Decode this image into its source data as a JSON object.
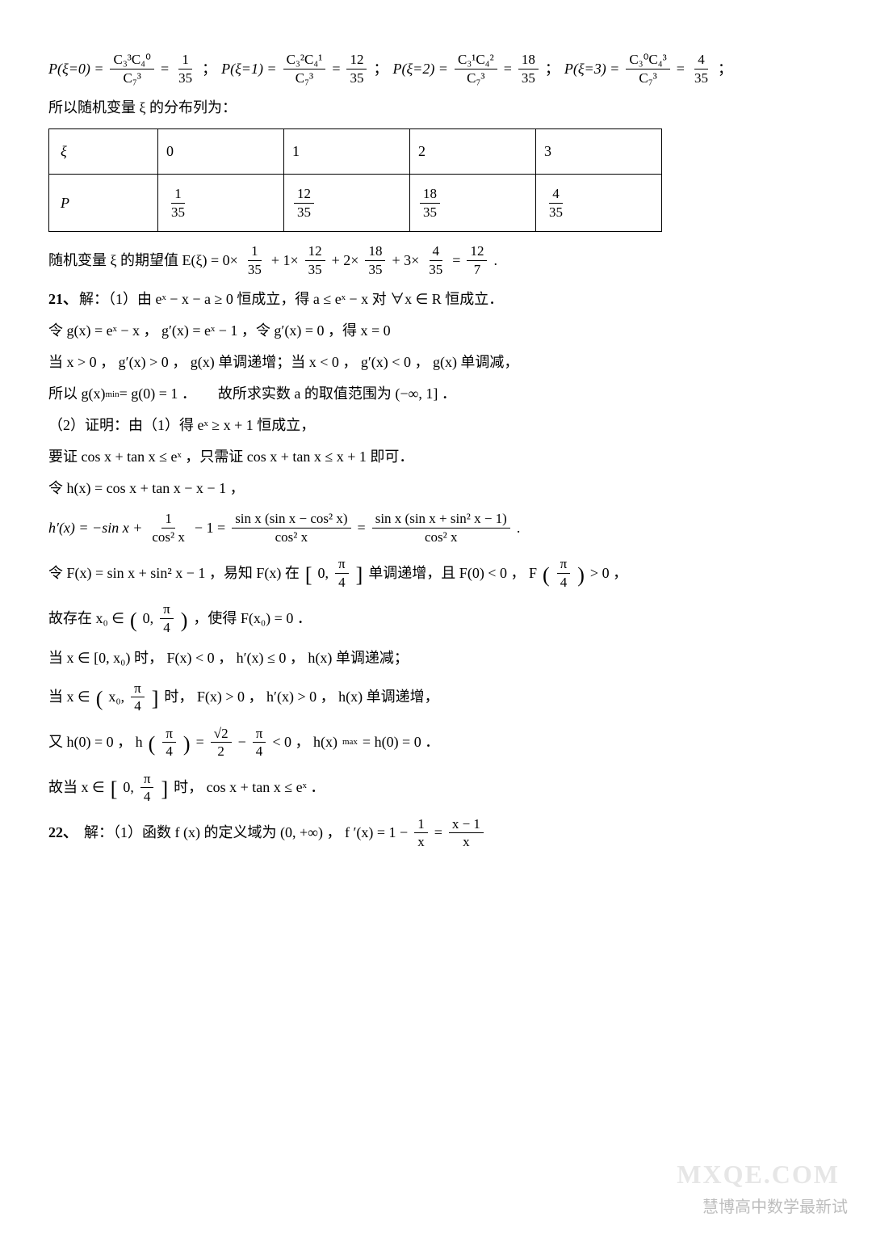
{
  "prob_row": {
    "p0": {
      "lhs": "P(ξ=0) =",
      "num": "C₃³C₄⁰",
      "den": "C₇³",
      "eq": "=",
      "rnum": "1",
      "rden": "35",
      "sep": "；"
    },
    "p1": {
      "lhs": "P(ξ=1) =",
      "num": "C₃²C₄¹",
      "den": "C₇³",
      "eq": "=",
      "rnum": "12",
      "rden": "35",
      "sep": "；"
    },
    "p2": {
      "lhs": "P(ξ=2) =",
      "num": "C₃¹C₄²",
      "den": "C₇³",
      "eq": "=",
      "rnum": "18",
      "rden": "35",
      "sep": "；"
    },
    "p3": {
      "lhs": "P(ξ=3) =",
      "num": "C₃⁰C₄³",
      "den": "C₇³",
      "eq": "=",
      "rnum": "4",
      "rden": "35",
      "sep": "；"
    }
  },
  "dist_intro": "所以随机变量 ξ 的分布列为：",
  "table": {
    "r0c0": "ξ",
    "r0c1": "0",
    "r0c2": "1",
    "r0c3": "2",
    "r0c4": "3",
    "r1c0": "P",
    "p0num": "1",
    "p0den": "35",
    "p1num": "12",
    "p1den": "35",
    "p2num": "18",
    "p2den": "35",
    "p3num": "4",
    "p3den": "35"
  },
  "exp_line": {
    "pre": "随机变量 ξ 的期望值 E(ξ) = 0×",
    "f1n": "1",
    "f1d": "35",
    "mid1": " + 1×",
    "f2n": "12",
    "f2d": "35",
    "mid2": " + 2×",
    "f3n": "18",
    "f3d": "35",
    "mid3": " + 3×",
    "f4n": "4",
    "f4d": "35",
    "mid4": " = ",
    "f5n": "12",
    "f5d": "7",
    "end": "."
  },
  "q21": {
    "label": "21、",
    "l1": "解：（1）由 eˣ − x − a ≥ 0 恒成立，得 a ≤ eˣ − x 对 ∀x ∈ R 恒成立．",
    "l2": "令 g(x) = eˣ − x ， g′(x) = eˣ − 1 ，令 g′(x) = 0 ，得 x = 0",
    "l3": "当 x > 0 ， g′(x) > 0 ， g(x) 单调递增；当 x < 0 ， g′(x) < 0 ， g(x) 单调减，",
    "l4a": "所以 g(x)",
    "l4sub": "min",
    "l4b": " = g(0) = 1 ．　　故所求实数 a 的取值范围为 (−∞, 1] ．",
    "l5": "（2）证明：由（1）得 eˣ ≥ x + 1 恒成立，",
    "l6": "要证 cos x + tan x ≤ eˣ ，只需证 cos x + tan x ≤ x + 1 即可．",
    "l7": "令 h(x) = cos x + tan x − x − 1 ，",
    "hpr_lhs": "h′(x) = −sin x + ",
    "hpr_f1n": "1",
    "hpr_f1d": "cos² x",
    "hpr_mid1": " − 1 = ",
    "hpr_f2n": "sin x (sin x − cos² x)",
    "hpr_f2d": "cos² x",
    "hpr_mid2": " = ",
    "hpr_f3n": "sin x (sin x + sin² x − 1)",
    "hpr_f3d": "cos² x",
    "hpr_end": ".",
    "F1a": "令 F(x) = sin x + sin² x − 1 ，易知 F(x) 在",
    "F1_brL": "[",
    "F1_lo": "0,",
    "F1_pi_n": "π",
    "F1_pi_d": "4",
    "F1_brR": "]",
    "F1b": " 单调递增，且 F(0) < 0 ， F",
    "F1c_pi_n": "π",
    "F1c_pi_d": "4",
    "F1d": " > 0 ，",
    "F2a": "故存在 x₀ ∈",
    "F2_lo": "0,",
    "F2_pi_n": "π",
    "F2_pi_d": "4",
    "F2b": "，使得 F(x₀) = 0 ．",
    "F3": "当 x ∈ [0, x₀) 时， F(x) < 0 ， h′(x) ≤ 0 ， h(x) 单调递减；",
    "F4a": "当 x ∈",
    "F4_lo": "x₀,",
    "F4_pi_n": "π",
    "F4_pi_d": "4",
    "F4b": "时， F(x) > 0 ， h′(x) > 0 ， h(x) 单调递增，",
    "F5a": "又 h(0) = 0 ， h",
    "F5_pi1n": "π",
    "F5_pi1d": "4",
    "F5mid": " = ",
    "F5_r2n": "√2",
    "F5_r2d": "2",
    "F5mid2": " − ",
    "F5_pi2n": "π",
    "F5_pi2d": "4",
    "F5b": " < 0 ， h(x)",
    "F5sub": "max",
    "F5c": " = h(0) = 0 ．",
    "F6a": "故当 x ∈",
    "F6_lo": "0,",
    "F6_pi_n": "π",
    "F6_pi_d": "4",
    "F6b": "时， cos x + tan x ≤ eˣ ．"
  },
  "q22": {
    "label": "22、",
    "l1a": "解：（1）函数 f (x) 的定义域为 (0, +∞) ， f ′(x) = 1 − ",
    "f1n": "1",
    "f1d": "x",
    "mid": " = ",
    "f2n": "x − 1",
    "f2d": "x"
  },
  "watermark_main": "慧博高中数学最新试",
  "watermark_bg": "MXQE.COM",
  "colors": {
    "text": "#000000",
    "bg": "#ffffff",
    "wm": "#bdbdbd",
    "wm2": "#e6e6e6"
  }
}
